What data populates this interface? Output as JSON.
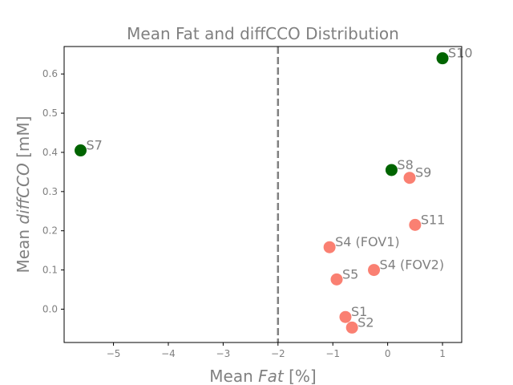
{
  "chart_data": {
    "type": "scatter",
    "title": "Mean Fat and diffCCO Distribution",
    "xlabel": {
      "prefix": "Mean ",
      "italic": "Fat",
      "suffix": " [%]"
    },
    "ylabel": {
      "prefix": "Mean ",
      "italic": "diffCCO",
      "suffix": " [mM]"
    },
    "xlim": [
      -5.9,
      1.35
    ],
    "ylim": [
      -0.085,
      0.67
    ],
    "xticks": [
      -5,
      -4,
      -3,
      -2,
      -1,
      0,
      1
    ],
    "xtick_labels": [
      "−5",
      "−4",
      "−3",
      "−2",
      "−1",
      "0",
      "1"
    ],
    "yticks": [
      0.0,
      0.1,
      0.2,
      0.3,
      0.4,
      0.5,
      0.6
    ],
    "ytick_labels": [
      "0.0",
      "0.1",
      "0.2",
      "0.3",
      "0.4",
      "0.5",
      "0.6"
    ],
    "grid": false,
    "threshold_line": {
      "x": -2,
      "style": "dashed",
      "color": "#808080"
    },
    "colors": {
      "green": "#006400",
      "salmon": "#fa8072",
      "text": "#808080"
    },
    "points": [
      {
        "label": "S10",
        "x": 1.0,
        "y": 0.64,
        "color": "#006400"
      },
      {
        "label": "S7",
        "x": -5.6,
        "y": 0.405,
        "color": "#006400"
      },
      {
        "label": "S8",
        "x": 0.07,
        "y": 0.355,
        "color": "#006400"
      },
      {
        "label": "S9",
        "x": 0.4,
        "y": 0.335,
        "color": "#fa8072"
      },
      {
        "label": "S11",
        "x": 0.5,
        "y": 0.215,
        "color": "#fa8072"
      },
      {
        "label": "S4 (FOV1)",
        "x": -1.06,
        "y": 0.158,
        "color": "#fa8072"
      },
      {
        "label": "S4 (FOV2)",
        "x": -0.25,
        "y": 0.1,
        "color": "#fa8072"
      },
      {
        "label": "S5",
        "x": -0.93,
        "y": 0.076,
        "color": "#fa8072"
      },
      {
        "label": "S1",
        "x": -0.77,
        "y": -0.02,
        "color": "#fa8072"
      },
      {
        "label": "S2",
        "x": -0.65,
        "y": -0.047,
        "color": "#fa8072"
      }
    ]
  }
}
